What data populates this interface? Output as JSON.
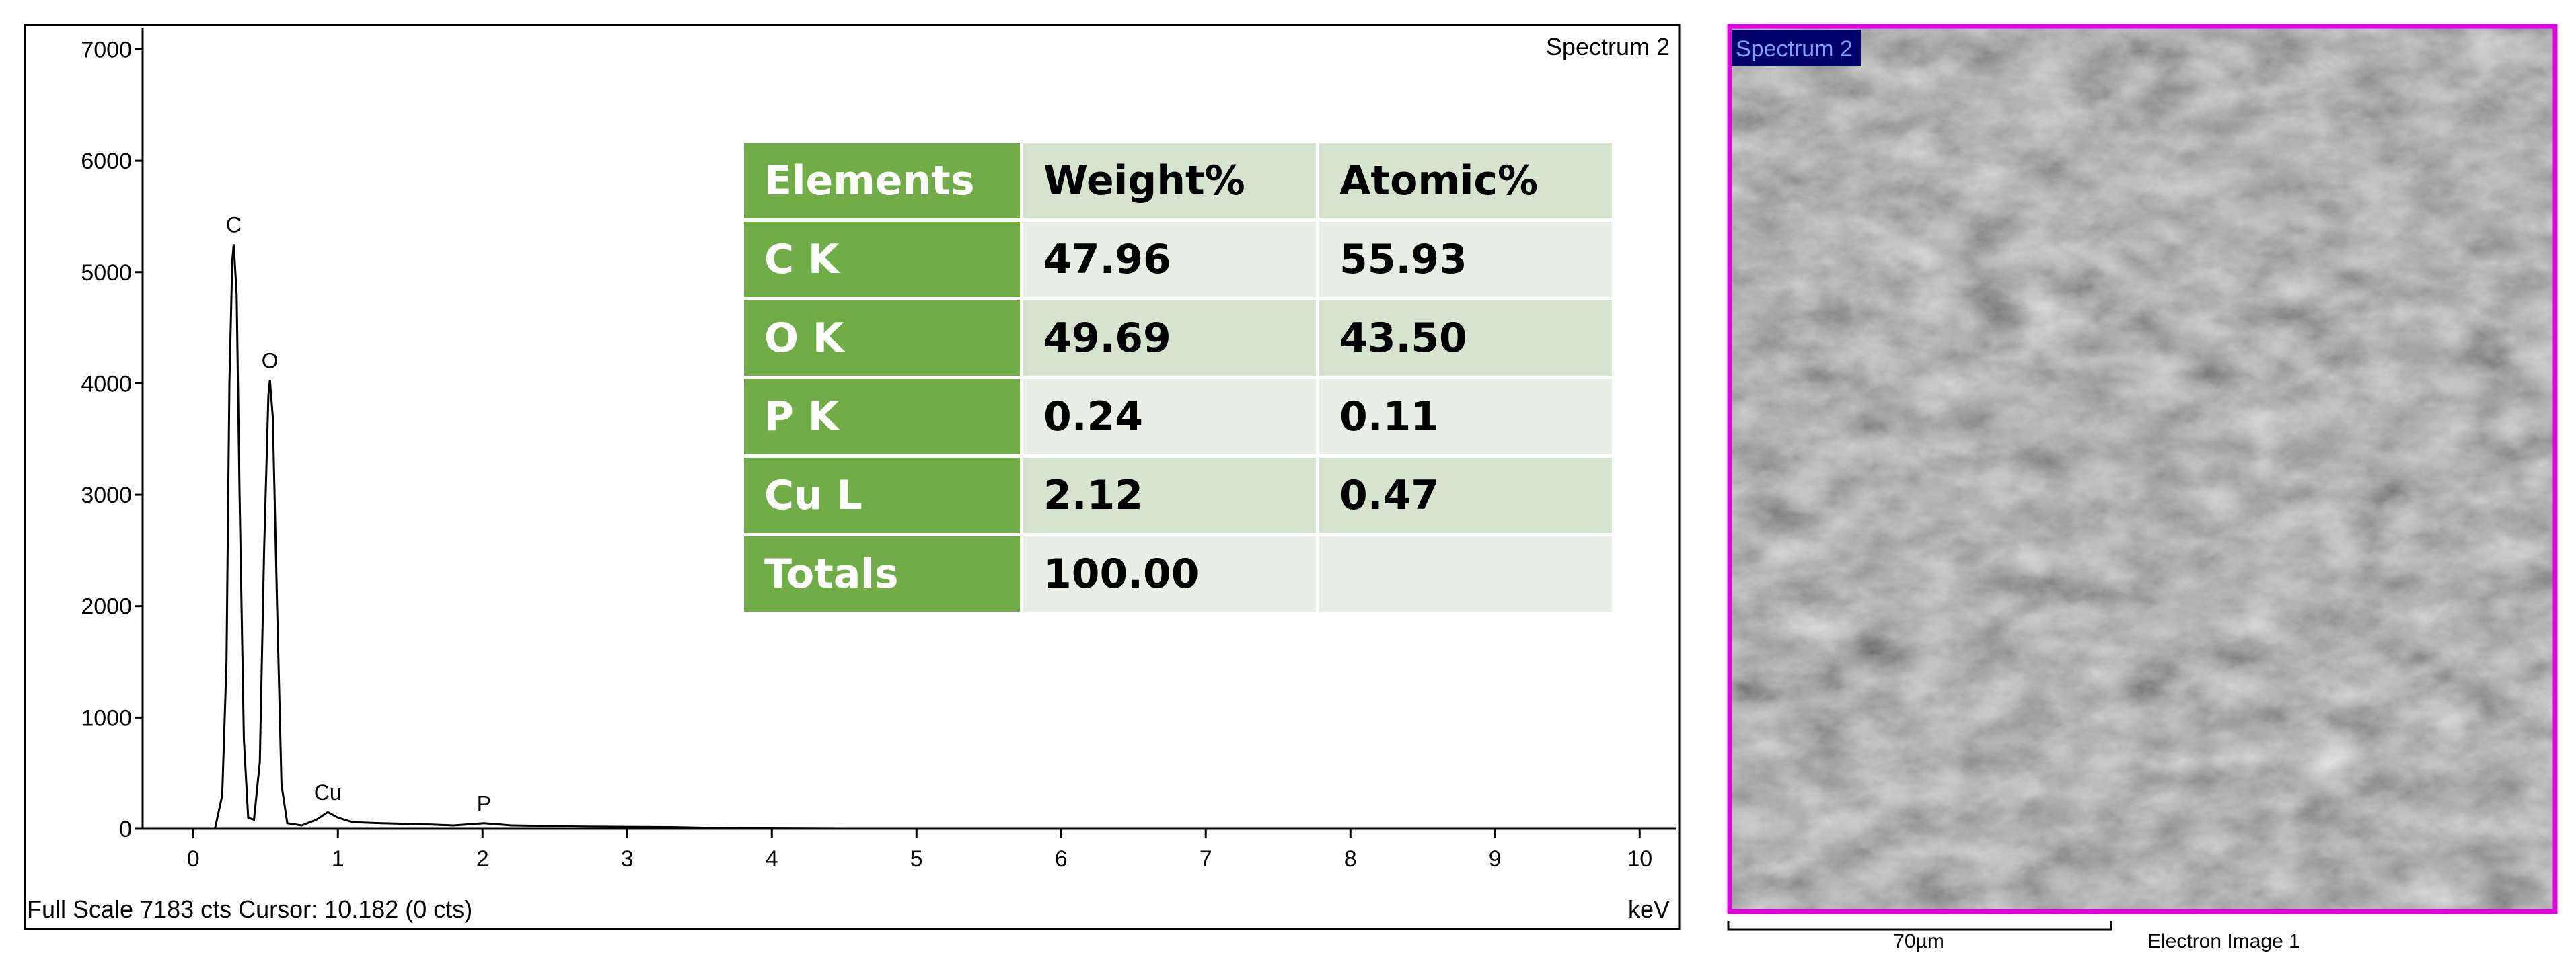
{
  "chart_data": {
    "type": "line",
    "title": "Spectrum 2",
    "footer": "Full Scale 7183 cts Cursor: 10.182  (0 cts)",
    "x_label": "keV",
    "x": [
      0.15,
      0.2,
      0.23,
      0.25,
      0.27,
      0.28,
      0.3,
      0.32,
      0.35,
      0.38,
      0.42,
      0.46,
      0.49,
      0.52,
      0.53,
      0.55,
      0.58,
      0.61,
      0.65,
      0.75,
      0.85,
      0.93,
      1.0,
      1.1,
      1.3,
      1.6,
      1.8,
      2.01,
      2.2,
      2.7,
      3.3,
      3.7,
      4.5,
      10.2
    ],
    "series": [
      {
        "color": "#000000",
        "values": [
          0,
          300,
          1500,
          4000,
          5100,
          5250,
          4800,
          3000,
          800,
          100,
          80,
          600,
          2500,
          3900,
          4030,
          3700,
          2000,
          400,
          50,
          30,
          80,
          150,
          100,
          60,
          50,
          40,
          30,
          50,
          30,
          20,
          15,
          5,
          0,
          0
        ]
      }
    ],
    "annotations": [
      {
        "text": "C",
        "x": 0.28
      },
      {
        "text": "O",
        "x": 0.53
      },
      {
        "text": "Cu",
        "x": 0.93
      },
      {
        "text": "P",
        "x": 2.01
      }
    ],
    "xlim": [
      -0.35,
      10.25
    ],
    "ylim": [
      0,
      7190
    ],
    "xticks": [
      0,
      1,
      2,
      3,
      4,
      5,
      6,
      7,
      8,
      9,
      10
    ],
    "yticks": [
      0,
      1000,
      2000,
      3000,
      4000,
      5000,
      6000,
      7000
    ]
  },
  "table": {
    "header": [
      "Elements",
      "Weight%",
      "Atomic%"
    ],
    "rows": [
      [
        "C K",
        "47.96",
        "55.93"
      ],
      [
        "O K",
        "49.69",
        "43.50"
      ],
      [
        "P K",
        "0.24",
        "0.11"
      ],
      [
        "Cu L",
        "2.12",
        "0.47"
      ],
      [
        "Totals",
        "100.00"
      ]
    ]
  },
  "image": {
    "label": "Spectrum 2",
    "scale_bar": "70µm",
    "caption": "Electron Image 1"
  }
}
